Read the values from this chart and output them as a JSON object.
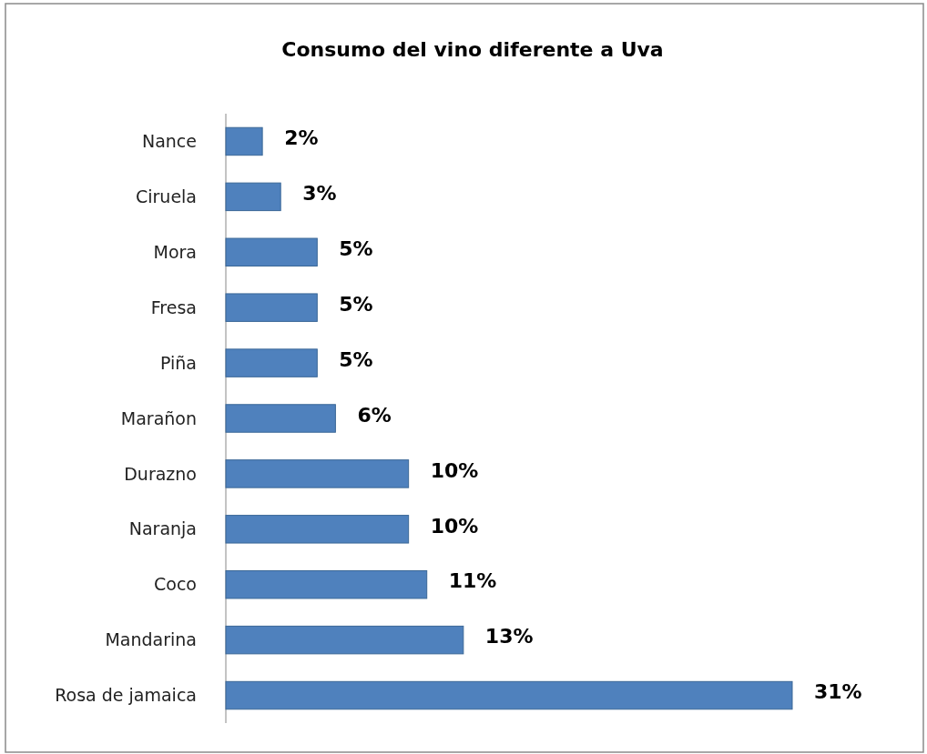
{
  "chart_data": {
    "type": "bar",
    "orientation": "horizontal",
    "title": "Consumo del vino diferente a Uva",
    "categories": [
      "Nance",
      "Ciruela",
      "Mora",
      "Fresa",
      "Piña",
      "Marañon",
      "Durazno",
      "Naranja",
      "Coco",
      "Mandarina",
      "Rosa de jamaica"
    ],
    "values": [
      2,
      3,
      5,
      5,
      5,
      6,
      10,
      10,
      11,
      13,
      31
    ],
    "value_labels": [
      "2%",
      "3%",
      "5%",
      "5%",
      "5%",
      "6%",
      "10%",
      "10%",
      "11%",
      "13%",
      "31%"
    ],
    "color": "#4f81bd"
  }
}
